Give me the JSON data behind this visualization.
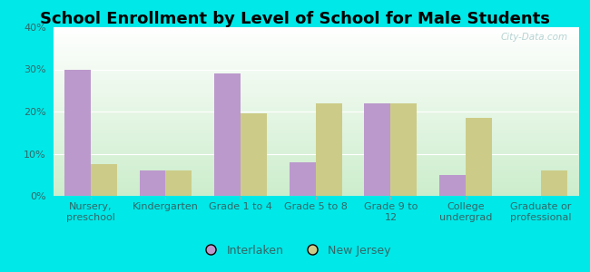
{
  "title": "School Enrollment by Level of School for Male Students",
  "categories": [
    "Nursery,\npreschool",
    "Kindergarten",
    "Grade 1 to 4",
    "Grade 5 to 8",
    "Grade 9 to\n12",
    "College\nundergrad",
    "Graduate or\nprofessional"
  ],
  "interlaken": [
    30,
    6,
    29,
    8,
    22,
    5,
    0
  ],
  "new_jersey": [
    7.5,
    6,
    19.5,
    22,
    22,
    18.5,
    6
  ],
  "interlaken_color": "#bb99cc",
  "new_jersey_color": "#cccc88",
  "background_outer": "#00e8e8",
  "background_inner_top": "#ffffff",
  "background_inner_bottom": "#cceecc",
  "ylim": [
    0,
    40
  ],
  "yticks": [
    0,
    10,
    20,
    30,
    40
  ],
  "ytick_labels": [
    "0%",
    "10%",
    "20%",
    "30%",
    "40%"
  ],
  "bar_width": 0.35,
  "legend_labels": [
    "Interlaken",
    "New Jersey"
  ],
  "title_fontsize": 13,
  "tick_fontsize": 8,
  "legend_fontsize": 9,
  "watermark": "City-Data.com"
}
